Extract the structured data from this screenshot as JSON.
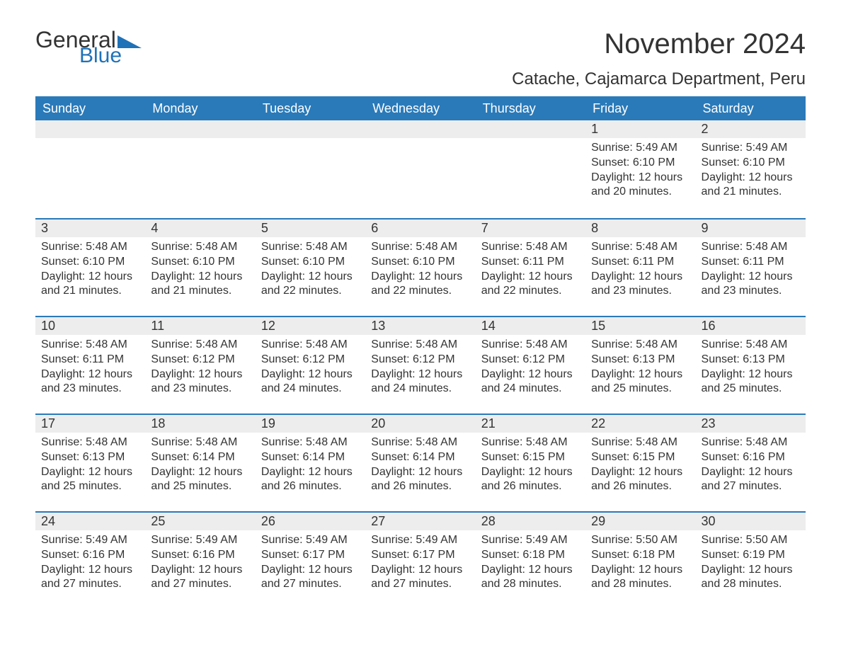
{
  "logo": {
    "word1": "General",
    "word2": "Blue",
    "triangle_color": "#1f72b8"
  },
  "title": "November 2024",
  "location": "Catache, Cajamarca Department, Peru",
  "colors": {
    "header_bg": "#2a7ab9",
    "header_text": "#ffffff",
    "daynum_bg": "#ededed",
    "border_top": "#2a7ab9",
    "body_bg": "#ffffff",
    "text": "#333333",
    "logo_blue": "#1f72b8"
  },
  "typography": {
    "title_fontsize": 40,
    "location_fontsize": 24,
    "header_fontsize": 18,
    "daynum_fontsize": 18,
    "body_fontsize": 16,
    "logo_fontsize": 32
  },
  "weekday_headers": [
    "Sunday",
    "Monday",
    "Tuesday",
    "Wednesday",
    "Thursday",
    "Friday",
    "Saturday"
  ],
  "weeks": [
    [
      {
        "empty": true
      },
      {
        "empty": true
      },
      {
        "empty": true
      },
      {
        "empty": true
      },
      {
        "empty": true
      },
      {
        "day": "1",
        "sunrise": "Sunrise: 5:49 AM",
        "sunset": "Sunset: 6:10 PM",
        "daylight": "Daylight: 12 hours and 20 minutes."
      },
      {
        "day": "2",
        "sunrise": "Sunrise: 5:49 AM",
        "sunset": "Sunset: 6:10 PM",
        "daylight": "Daylight: 12 hours and 21 minutes."
      }
    ],
    [
      {
        "day": "3",
        "sunrise": "Sunrise: 5:48 AM",
        "sunset": "Sunset: 6:10 PM",
        "daylight": "Daylight: 12 hours and 21 minutes."
      },
      {
        "day": "4",
        "sunrise": "Sunrise: 5:48 AM",
        "sunset": "Sunset: 6:10 PM",
        "daylight": "Daylight: 12 hours and 21 minutes."
      },
      {
        "day": "5",
        "sunrise": "Sunrise: 5:48 AM",
        "sunset": "Sunset: 6:10 PM",
        "daylight": "Daylight: 12 hours and 22 minutes."
      },
      {
        "day": "6",
        "sunrise": "Sunrise: 5:48 AM",
        "sunset": "Sunset: 6:10 PM",
        "daylight": "Daylight: 12 hours and 22 minutes."
      },
      {
        "day": "7",
        "sunrise": "Sunrise: 5:48 AM",
        "sunset": "Sunset: 6:11 PM",
        "daylight": "Daylight: 12 hours and 22 minutes."
      },
      {
        "day": "8",
        "sunrise": "Sunrise: 5:48 AM",
        "sunset": "Sunset: 6:11 PM",
        "daylight": "Daylight: 12 hours and 23 minutes."
      },
      {
        "day": "9",
        "sunrise": "Sunrise: 5:48 AM",
        "sunset": "Sunset: 6:11 PM",
        "daylight": "Daylight: 12 hours and 23 minutes."
      }
    ],
    [
      {
        "day": "10",
        "sunrise": "Sunrise: 5:48 AM",
        "sunset": "Sunset: 6:11 PM",
        "daylight": "Daylight: 12 hours and 23 minutes."
      },
      {
        "day": "11",
        "sunrise": "Sunrise: 5:48 AM",
        "sunset": "Sunset: 6:12 PM",
        "daylight": "Daylight: 12 hours and 23 minutes."
      },
      {
        "day": "12",
        "sunrise": "Sunrise: 5:48 AM",
        "sunset": "Sunset: 6:12 PM",
        "daylight": "Daylight: 12 hours and 24 minutes."
      },
      {
        "day": "13",
        "sunrise": "Sunrise: 5:48 AM",
        "sunset": "Sunset: 6:12 PM",
        "daylight": "Daylight: 12 hours and 24 minutes."
      },
      {
        "day": "14",
        "sunrise": "Sunrise: 5:48 AM",
        "sunset": "Sunset: 6:12 PM",
        "daylight": "Daylight: 12 hours and 24 minutes."
      },
      {
        "day": "15",
        "sunrise": "Sunrise: 5:48 AM",
        "sunset": "Sunset: 6:13 PM",
        "daylight": "Daylight: 12 hours and 25 minutes."
      },
      {
        "day": "16",
        "sunrise": "Sunrise: 5:48 AM",
        "sunset": "Sunset: 6:13 PM",
        "daylight": "Daylight: 12 hours and 25 minutes."
      }
    ],
    [
      {
        "day": "17",
        "sunrise": "Sunrise: 5:48 AM",
        "sunset": "Sunset: 6:13 PM",
        "daylight": "Daylight: 12 hours and 25 minutes."
      },
      {
        "day": "18",
        "sunrise": "Sunrise: 5:48 AM",
        "sunset": "Sunset: 6:14 PM",
        "daylight": "Daylight: 12 hours and 25 minutes."
      },
      {
        "day": "19",
        "sunrise": "Sunrise: 5:48 AM",
        "sunset": "Sunset: 6:14 PM",
        "daylight": "Daylight: 12 hours and 26 minutes."
      },
      {
        "day": "20",
        "sunrise": "Sunrise: 5:48 AM",
        "sunset": "Sunset: 6:14 PM",
        "daylight": "Daylight: 12 hours and 26 minutes."
      },
      {
        "day": "21",
        "sunrise": "Sunrise: 5:48 AM",
        "sunset": "Sunset: 6:15 PM",
        "daylight": "Daylight: 12 hours and 26 minutes."
      },
      {
        "day": "22",
        "sunrise": "Sunrise: 5:48 AM",
        "sunset": "Sunset: 6:15 PM",
        "daylight": "Daylight: 12 hours and 26 minutes."
      },
      {
        "day": "23",
        "sunrise": "Sunrise: 5:48 AM",
        "sunset": "Sunset: 6:16 PM",
        "daylight": "Daylight: 12 hours and 27 minutes."
      }
    ],
    [
      {
        "day": "24",
        "sunrise": "Sunrise: 5:49 AM",
        "sunset": "Sunset: 6:16 PM",
        "daylight": "Daylight: 12 hours and 27 minutes."
      },
      {
        "day": "25",
        "sunrise": "Sunrise: 5:49 AM",
        "sunset": "Sunset: 6:16 PM",
        "daylight": "Daylight: 12 hours and 27 minutes."
      },
      {
        "day": "26",
        "sunrise": "Sunrise: 5:49 AM",
        "sunset": "Sunset: 6:17 PM",
        "daylight": "Daylight: 12 hours and 27 minutes."
      },
      {
        "day": "27",
        "sunrise": "Sunrise: 5:49 AM",
        "sunset": "Sunset: 6:17 PM",
        "daylight": "Daylight: 12 hours and 27 minutes."
      },
      {
        "day": "28",
        "sunrise": "Sunrise: 5:49 AM",
        "sunset": "Sunset: 6:18 PM",
        "daylight": "Daylight: 12 hours and 28 minutes."
      },
      {
        "day": "29",
        "sunrise": "Sunrise: 5:50 AM",
        "sunset": "Sunset: 6:18 PM",
        "daylight": "Daylight: 12 hours and 28 minutes."
      },
      {
        "day": "30",
        "sunrise": "Sunrise: 5:50 AM",
        "sunset": "Sunset: 6:19 PM",
        "daylight": "Daylight: 12 hours and 28 minutes."
      }
    ]
  ]
}
